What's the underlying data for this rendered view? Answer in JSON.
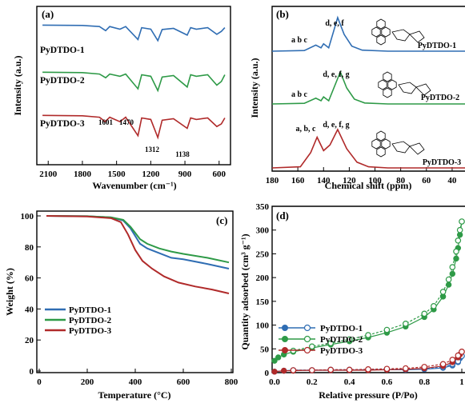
{
  "chart_data": [
    {
      "panel_label": "(a)",
      "type": "line",
      "xlabel": "Wavenumber (cm⁻¹)",
      "ylabel": "Intensity (a.u.)",
      "xlim": [
        2200,
        500
      ],
      "x_reversed": true,
      "xticks": [
        "2100",
        "1800",
        "1500",
        "1200",
        "900",
        "600"
      ],
      "series": [
        {
          "name": "PyDTDO-1",
          "color": "#2f6db3",
          "points": [
            [
              2150,
              0.97
            ],
            [
              1800,
              0.96
            ],
            [
              1650,
              0.93
            ],
            [
              1596,
              0.82
            ],
            [
              1560,
              0.93
            ],
            [
              1470,
              0.86
            ],
            [
              1420,
              0.93
            ],
            [
              1312,
              0.58
            ],
            [
              1280,
              0.9
            ],
            [
              1200,
              0.86
            ],
            [
              1138,
              0.55
            ],
            [
              1100,
              0.85
            ],
            [
              1000,
              0.88
            ],
            [
              880,
              0.7
            ],
            [
              850,
              0.9
            ],
            [
              800,
              0.86
            ],
            [
              700,
              0.9
            ],
            [
              620,
              0.72
            ],
            [
              580,
              0.8
            ],
            [
              550,
              0.9
            ]
          ]
        },
        {
          "name": "PyDTDO-2",
          "color": "#2e9a47",
          "points": [
            [
              2150,
              0.95
            ],
            [
              1800,
              0.94
            ],
            [
              1650,
              0.9
            ],
            [
              1596,
              0.8
            ],
            [
              1560,
              0.9
            ],
            [
              1470,
              0.84
            ],
            [
              1420,
              0.9
            ],
            [
              1312,
              0.5
            ],
            [
              1280,
              0.88
            ],
            [
              1200,
              0.84
            ],
            [
              1138,
              0.45
            ],
            [
              1100,
              0.82
            ],
            [
              1000,
              0.86
            ],
            [
              880,
              0.55
            ],
            [
              850,
              0.88
            ],
            [
              800,
              0.84
            ],
            [
              700,
              0.88
            ],
            [
              620,
              0.6
            ],
            [
              580,
              0.7
            ],
            [
              550,
              0.88
            ]
          ]
        },
        {
          "name": "PyDTDO-3",
          "color": "#b02a2a",
          "points": [
            [
              2150,
              0.95
            ],
            [
              1800,
              0.94
            ],
            [
              1650,
              0.9
            ],
            [
              1601,
              0.78
            ],
            [
              1560,
              0.9
            ],
            [
              1470,
              0.78
            ],
            [
              1420,
              0.9
            ],
            [
              1312,
              0.4
            ],
            [
              1280,
              0.88
            ],
            [
              1200,
              0.84
            ],
            [
              1138,
              0.35
            ],
            [
              1100,
              0.82
            ],
            [
              1000,
              0.86
            ],
            [
              880,
              0.6
            ],
            [
              850,
              0.88
            ],
            [
              800,
              0.84
            ],
            [
              700,
              0.88
            ],
            [
              620,
              0.65
            ],
            [
              580,
              0.72
            ],
            [
              550,
              0.88
            ]
          ]
        }
      ],
      "annotations": [
        "1601",
        "1470",
        "1312",
        "1138"
      ]
    },
    {
      "panel_label": "(b)",
      "type": "line",
      "xlabel": "Chemical shift (ppm)",
      "ylabel": "Intensity (a.u.)",
      "xlim": [
        180,
        30
      ],
      "x_reversed": true,
      "xticks": [
        "180",
        "160",
        "140",
        "120",
        "100",
        "80",
        "60",
        "40"
      ],
      "series": [
        {
          "name": "PyDTDO-1",
          "color": "#2f6db3",
          "points": [
            [
              180,
              0
            ],
            [
              155,
              0.02
            ],
            [
              146,
              0.18
            ],
            [
              142,
              0.1
            ],
            [
              140,
              0.22
            ],
            [
              136,
              0.1
            ],
            [
              129,
              1.0
            ],
            [
              124,
              0.5
            ],
            [
              118,
              0.15
            ],
            [
              110,
              0.03
            ],
            [
              90,
              0
            ],
            [
              30,
              0
            ]
          ]
        },
        {
          "name": "PyDTDO-2",
          "color": "#2e9a47",
          "points": [
            [
              180,
              0
            ],
            [
              155,
              0.02
            ],
            [
              146,
              0.18
            ],
            [
              142,
              0.1
            ],
            [
              140,
              0.22
            ],
            [
              136,
              0.1
            ],
            [
              127,
              1.0
            ],
            [
              122,
              0.5
            ],
            [
              116,
              0.15
            ],
            [
              108,
              0.03
            ],
            [
              90,
              0
            ],
            [
              30,
              0
            ]
          ]
        },
        {
          "name": "PyDTDO-3",
          "color": "#b02a2a",
          "points": [
            [
              180,
              0
            ],
            [
              158,
              0.03
            ],
            [
              150,
              0.4
            ],
            [
              145,
              0.8
            ],
            [
              140,
              0.45
            ],
            [
              135,
              0.6
            ],
            [
              129,
              1.0
            ],
            [
              122,
              0.5
            ],
            [
              114,
              0.15
            ],
            [
              105,
              0.03
            ],
            [
              90,
              0
            ],
            [
              30,
              0
            ]
          ]
        }
      ],
      "peak_labels": [
        "a b c",
        "d, e, f",
        "d, e, f, g",
        "a, b, c"
      ]
    },
    {
      "panel_label": "(c)",
      "type": "line",
      "xlabel": "Temperature (°C)",
      "ylabel": "Weight (%)",
      "xlim": [
        0,
        800
      ],
      "ylim": [
        0,
        100
      ],
      "xticks": [
        "0",
        "200",
        "400",
        "600",
        "800"
      ],
      "yticks": [
        "0",
        "20",
        "40",
        "60",
        "80",
        "100"
      ],
      "legend_position": "center-left",
      "series": [
        {
          "name": "PyDTDO-1",
          "color": "#2f6db3",
          "points": [
            [
              30,
              100
            ],
            [
              200,
              99.8
            ],
            [
              300,
              99
            ],
            [
              350,
              97
            ],
            [
              380,
              92
            ],
            [
              400,
              87
            ],
            [
              420,
              82
            ],
            [
              450,
              79
            ],
            [
              500,
              76
            ],
            [
              550,
              73
            ],
            [
              600,
              72
            ],
            [
              700,
              69
            ],
            [
              790,
              66
            ]
          ]
        },
        {
          "name": "PyDTDO-2",
          "color": "#2e9a47",
          "points": [
            [
              30,
              100
            ],
            [
              200,
              99.8
            ],
            [
              300,
              99
            ],
            [
              350,
              97.5
            ],
            [
              380,
              93
            ],
            [
              400,
              89
            ],
            [
              420,
              85
            ],
            [
              450,
              82
            ],
            [
              500,
              79
            ],
            [
              550,
              77
            ],
            [
              600,
              75.5
            ],
            [
              700,
              73
            ],
            [
              790,
              70
            ]
          ]
        },
        {
          "name": "PyDTDO-3",
          "color": "#b02a2a",
          "points": [
            [
              30,
              100
            ],
            [
              200,
              99.6
            ],
            [
              300,
              98.5
            ],
            [
              340,
              96
            ],
            [
              370,
              88
            ],
            [
              400,
              78
            ],
            [
              430,
              71
            ],
            [
              470,
              66
            ],
            [
              520,
              61
            ],
            [
              580,
              57
            ],
            [
              650,
              54.5
            ],
            [
              720,
              52.5
            ],
            [
              790,
              50
            ]
          ]
        }
      ]
    },
    {
      "panel_label": "(d)",
      "type": "scatter",
      "xlabel": "Relative pressure (P/Po)",
      "ylabel": "Quantity adsorbed (cm³ g⁻¹)",
      "xlim": [
        0,
        1.0
      ],
      "ylim": [
        0,
        350
      ],
      "xticks": [
        "0.0",
        "0.2",
        "0.4",
        "0.6",
        "0.8",
        "1"
      ],
      "yticks": [
        "0",
        "50",
        "100",
        "150",
        "200",
        "250",
        "300",
        "350"
      ],
      "legend_position": "upper-left",
      "series": [
        {
          "name": "PyDTDO-1",
          "color": "#2f6db3",
          "adsorption": [
            [
              0.0,
              2
            ],
            [
              0.05,
              4
            ],
            [
              0.1,
              5
            ],
            [
              0.2,
              5
            ],
            [
              0.3,
              5
            ],
            [
              0.4,
              5
            ],
            [
              0.5,
              6
            ],
            [
              0.6,
              6
            ],
            [
              0.7,
              6
            ],
            [
              0.8,
              7
            ],
            [
              0.9,
              10
            ],
            [
              0.95,
              15
            ],
            [
              0.98,
              22
            ],
            [
              0.99,
              30
            ],
            [
              1.0,
              35
            ]
          ],
          "desorption": [
            [
              1.0,
              35
            ],
            [
              0.98,
              24
            ],
            [
              0.95,
              18
            ],
            [
              0.9,
              12
            ],
            [
              0.8,
              8
            ],
            [
              0.7,
              7
            ],
            [
              0.6,
              7
            ],
            [
              0.5,
              6
            ],
            [
              0.4,
              6
            ],
            [
              0.3,
              6
            ],
            [
              0.2,
              5
            ],
            [
              0.1,
              5
            ]
          ]
        },
        {
          "name": "PyDTDO-2",
          "color": "#2e9a47",
          "adsorption": [
            [
              0.0,
              25
            ],
            [
              0.02,
              32
            ],
            [
              0.05,
              38
            ],
            [
              0.1,
              44
            ],
            [
              0.2,
              52
            ],
            [
              0.3,
              59
            ],
            [
              0.4,
              66
            ],
            [
              0.5,
              74
            ],
            [
              0.6,
              84
            ],
            [
              0.7,
              97
            ],
            [
              0.8,
              117
            ],
            [
              0.85,
              133
            ],
            [
              0.9,
              160
            ],
            [
              0.93,
              185
            ],
            [
              0.95,
              208
            ],
            [
              0.97,
              240
            ],
            [
              0.98,
              262
            ],
            [
              0.99,
              290
            ],
            [
              1.0,
              318
            ]
          ],
          "desorption": [
            [
              1.0,
              318
            ],
            [
              0.99,
              300
            ],
            [
              0.98,
              278
            ],
            [
              0.97,
              255
            ],
            [
              0.95,
              222
            ],
            [
              0.93,
              196
            ],
            [
              0.9,
              170
            ],
            [
              0.85,
              140
            ],
            [
              0.8,
              124
            ],
            [
              0.7,
              103
            ],
            [
              0.6,
              90
            ],
            [
              0.5,
              79
            ],
            [
              0.4,
              70
            ],
            [
              0.3,
              62
            ],
            [
              0.2,
              55
            ],
            [
              0.1,
              46
            ]
          ]
        },
        {
          "name": "PyDTDO-3",
          "color": "#b02a2a",
          "adsorption": [
            [
              0.0,
              2
            ],
            [
              0.05,
              4
            ],
            [
              0.1,
              4
            ],
            [
              0.2,
              5
            ],
            [
              0.3,
              5
            ],
            [
              0.4,
              5
            ],
            [
              0.5,
              5
            ],
            [
              0.6,
              6
            ],
            [
              0.7,
              7
            ],
            [
              0.8,
              9
            ],
            [
              0.9,
              14
            ],
            [
              0.95,
              22
            ],
            [
              0.98,
              32
            ],
            [
              0.99,
              38
            ],
            [
              1.0,
              44
            ]
          ],
          "desorption": [
            [
              1.0,
              44
            ],
            [
              0.98,
              36
            ],
            [
              0.95,
              27
            ],
            [
              0.9,
              18
            ],
            [
              0.8,
              12
            ],
            [
              0.7,
              9
            ],
            [
              0.6,
              8
            ],
            [
              0.5,
              7
            ],
            [
              0.4,
              6
            ],
            [
              0.3,
              6
            ],
            [
              0.2,
              5
            ],
            [
              0.1,
              5
            ]
          ]
        }
      ]
    }
  ]
}
